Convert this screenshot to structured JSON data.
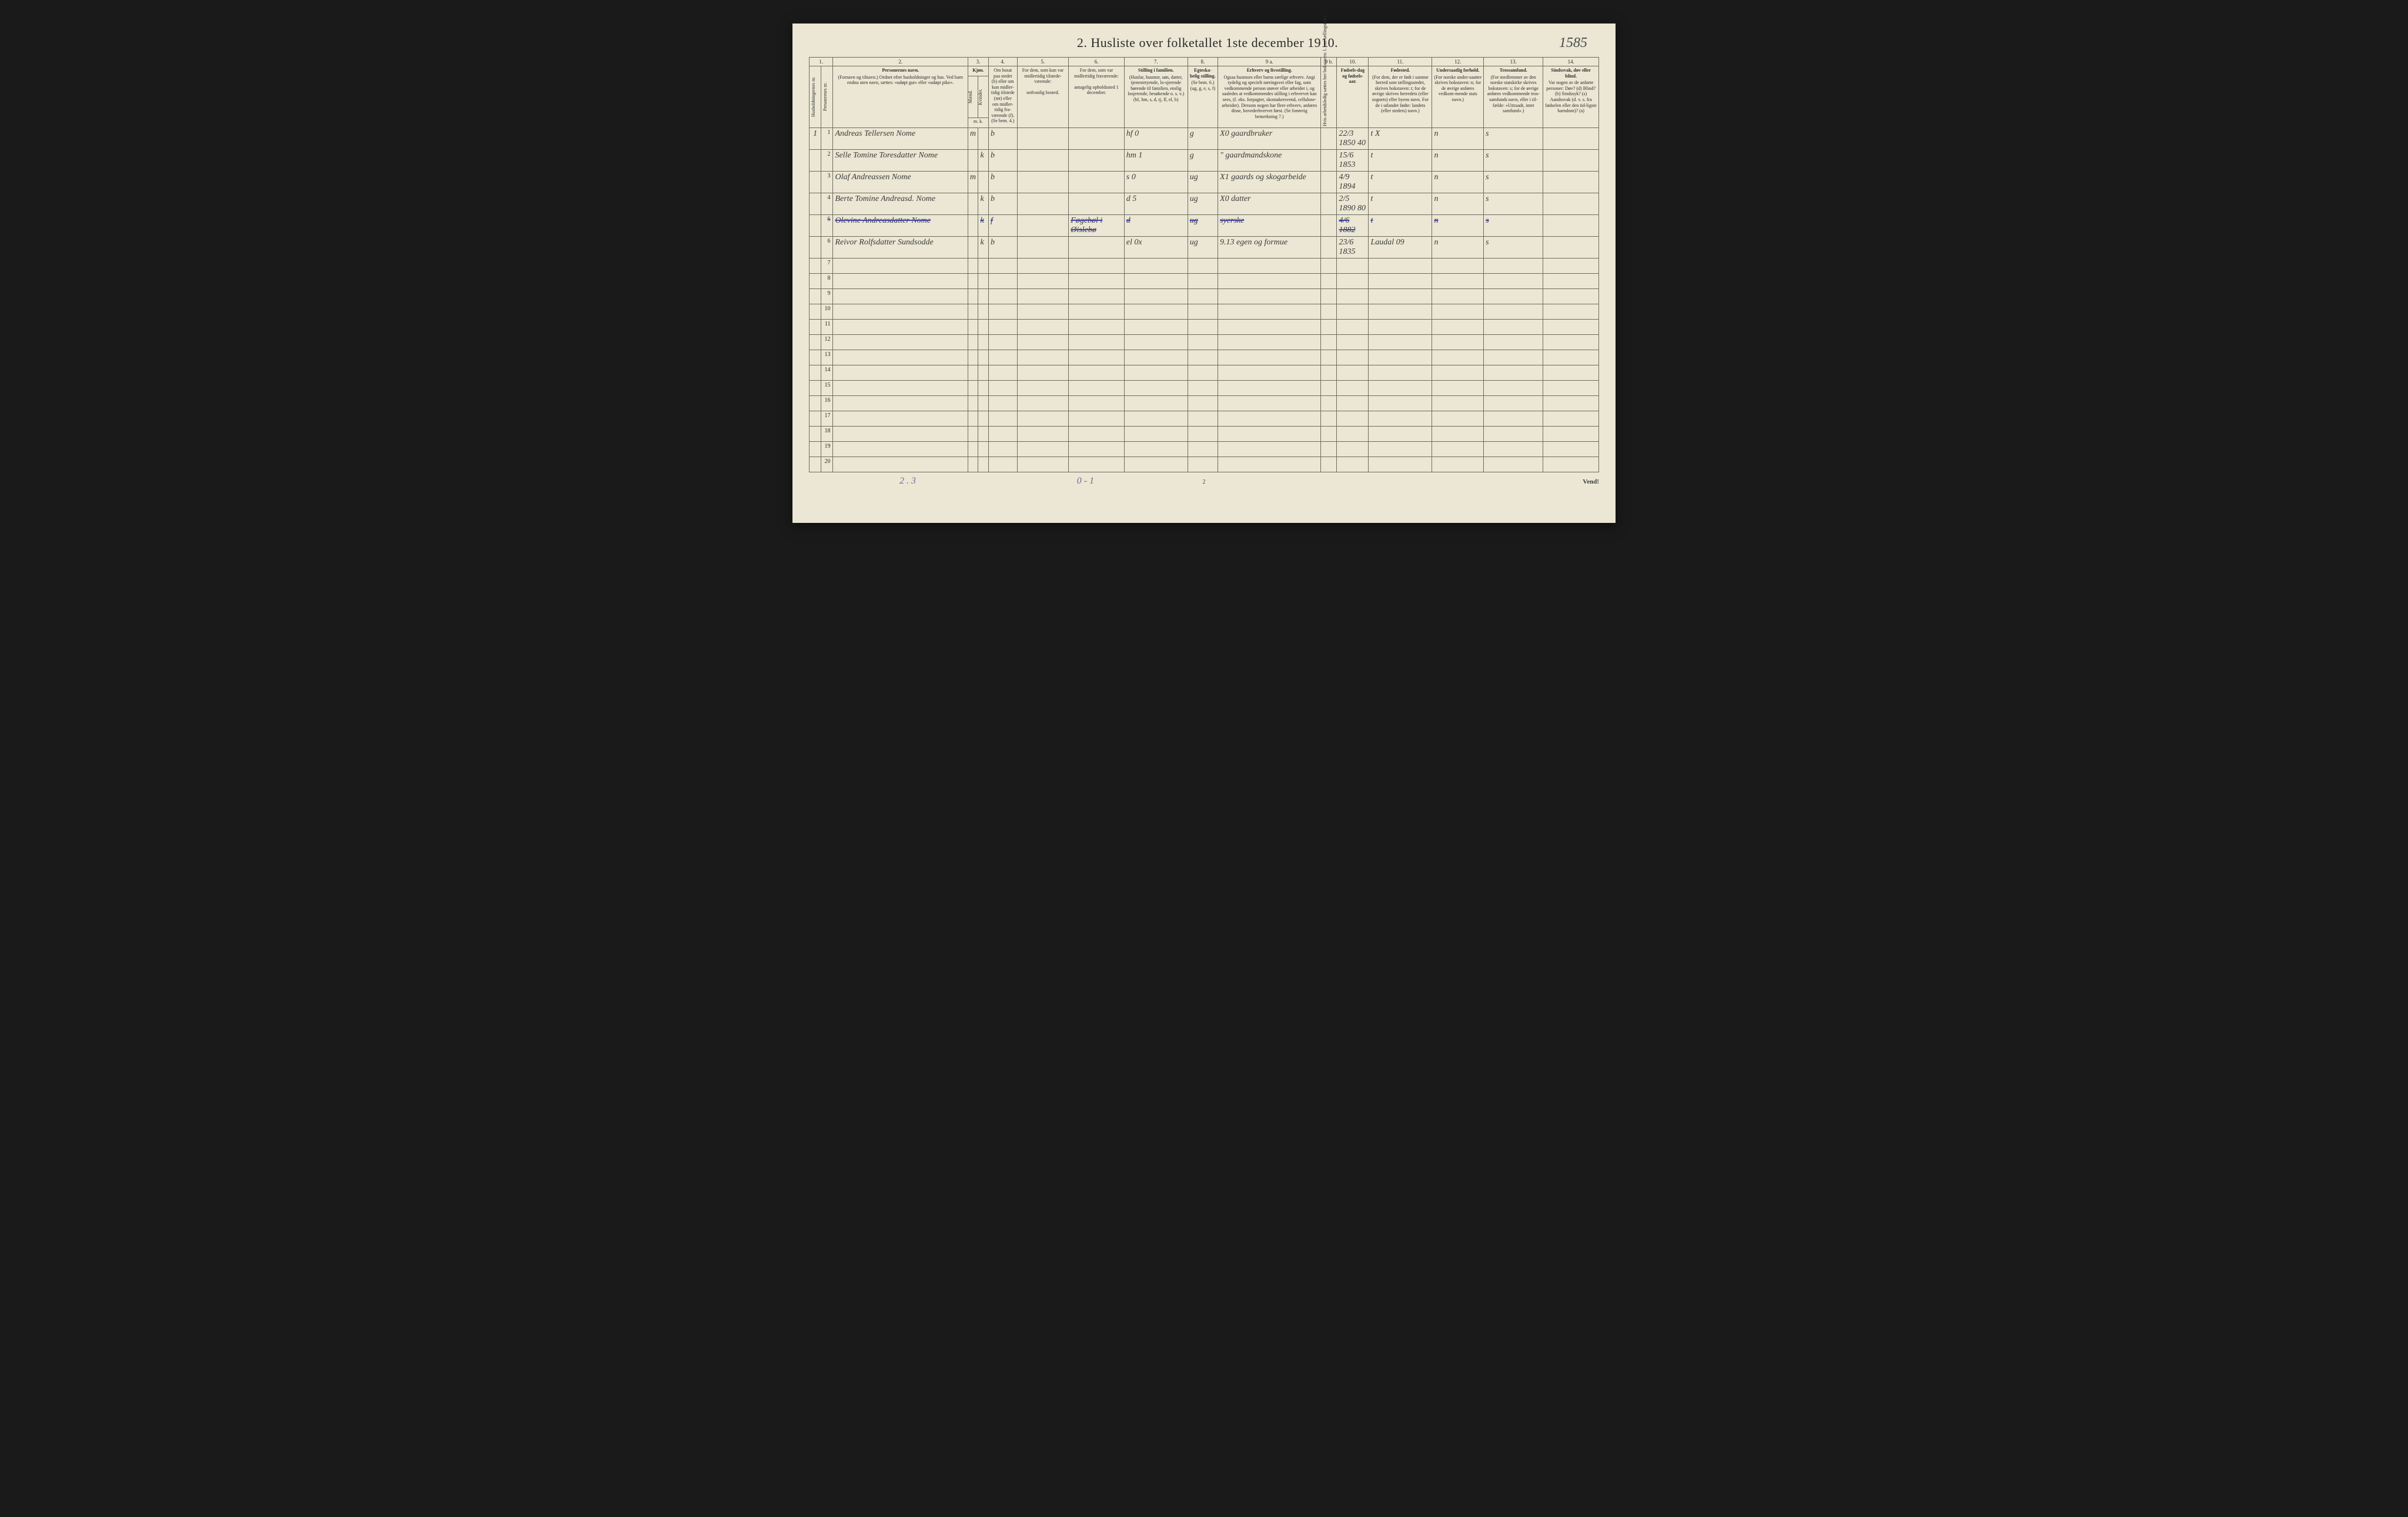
{
  "title": "2.  Husliste over folketallet 1ste december 1910.",
  "topright_handwritten": "1585",
  "col_numbers": [
    "1.",
    "2.",
    "3.",
    "4.",
    "5.",
    "6.",
    "7.",
    "8.",
    "9 a.",
    "9 b.",
    "10.",
    "11.",
    "12.",
    "13.",
    "14."
  ],
  "headers": {
    "c1a": "Husholdningernes nr.",
    "c1b": "Personernes nr.",
    "c2_main": "Personernes navn.",
    "c2_sub": "(Fornavn og tilnavn.)\nOrdnet efter husholdninger og hus.\nVed barn endnu uten navn, sættes: «udøpt gut» eller «udøpt pike».",
    "c3_main": "Kjøn.",
    "c3m": "Mænd.",
    "c3k": "Kvinder.",
    "c3_foot": "m. k.",
    "c4_main": "Om bosat paa stedet (b) eller om kun midler-tidig tilstede (mt) eller om midler-tidig fra-værende (f).",
    "c4_sub": "(Se bem. 4.)",
    "c5_main": "For dem, som kun var midlertidig tilstede-værende:",
    "c5_sub": "sedvanlig bosted.",
    "c6_main": "For dem, som var midlertidig fraværende:",
    "c6_sub": "antagelig opholdssted 1 december.",
    "c7_main": "Stilling i familien.",
    "c7_sub": "(Husfar, husmor, søn, datter, tjenestetyende, lo-sjerende hørende til familien, enslig losjerende, besøkende o. s. v.)\n(hf, hm, s, d, tj, fl, el, b)",
    "c8_main": "Egteska-belig stilling.",
    "c8_sub": "(Se bem. 6.)\n(ug, g, e, s, f)",
    "c9a_main": "Erhverv og livsstilling.",
    "c9a_sub": "Ogsaa husmors eller barns særlige erhverv.\nAngi tydelig og specielt næringsvei eller fag, som vedkommende person utøver eller arbeider i, og saaledes at vedkommendes stilling i erhvervet kan sees, (f. eks. forpagter, skomakersvend, cellulose-arbeider). Dersom nogen har flere erhverv, anføres disse, hovederhvervet først.\n(Se forøvrig bemerkning 7.)",
    "c9b": "Hvis arbeidsledig sættes her bokstaven: l. paa tællingstiden",
    "c10_main": "Fødsels-dag og fødsels-aar.",
    "c11_main": "Fødested.",
    "c11_sub": "(For dem, der er født i samme herred som tællingsstedet, skrives bokstaven: t; for de øvrige skrives herredets (eller sognets) eller byens navn.\nFor de i utlandet fødte: landets (eller stedets) navn.)",
    "c12_main": "Undersaatlig forhold.",
    "c12_sub": "(For norske under-saatter skrives bokstaven: n; for de øvrige anføres vedkom-mende stats navn.)",
    "c13_main": "Trossamfund.",
    "c13_sub": "(For medlemmer av den norske statskirke skrives bokstaven: s; for de øvrige anføres vedkommende tros-samfunds navn, eller i til-fælde: «Uttraadt, intet samfund».)",
    "c14_main": "Sindssvak, døv eller blind.",
    "c14_sub": "Var nogen av de anførte personer:\nDøv? (d)\nBlind? (b)\nSindssyk? (s)\nAandssvak (d. v. s. fra fødselen eller den tid-ligste barndom)? (a)"
  },
  "rows": [
    {
      "house": "1",
      "num": "1",
      "name": "Andreas Tellersen Nome",
      "m": "m",
      "k": "",
      "bosat": "b",
      "midl": "",
      "frav": "",
      "stilling": "hf",
      "stilling2": "0",
      "egt": "g",
      "erhverv": "X0  gaardbruker",
      "l": "",
      "fdato": "22/3 1850 40",
      "fsted": "t  X",
      "unders": "n",
      "tros": "s",
      "sinds": ""
    },
    {
      "house": "",
      "num": "2",
      "name": "Selle Tomine Toresdatter Nome",
      "m": "",
      "k": "k",
      "bosat": "b",
      "midl": "",
      "frav": "",
      "stilling": "hm",
      "stilling2": "1",
      "egt": "g",
      "erhverv": "\"  gaardmandskone",
      "l": "",
      "fdato": "15/6 1853",
      "fsted": "t",
      "unders": "n",
      "tros": "s",
      "sinds": ""
    },
    {
      "house": "",
      "num": "3",
      "name": "Olaf Andreassen Nome",
      "m": "m",
      "k": "",
      "bosat": "b",
      "midl": "",
      "frav": "",
      "stilling": "s",
      "stilling2": "0",
      "egt": "ug",
      "erhverv": "X1  gaards og skogarbeide",
      "l": "",
      "fdato": "4/9 1894",
      "fsted": "t",
      "unders": "n",
      "tros": "s",
      "sinds": ""
    },
    {
      "house": "",
      "num": "4",
      "name": "Berte Tomine Andreasd. Nome",
      "m": "",
      "k": "k",
      "bosat": "b",
      "midl": "",
      "frav": "",
      "stilling": "d",
      "stilling2": "5",
      "egt": "ug",
      "erhverv": "X0   datter",
      "l": "",
      "fdato": "2/5 1890 80",
      "fsted": "t",
      "unders": "n",
      "tros": "s",
      "sinds": ""
    },
    {
      "house": "",
      "num": "5",
      "name": "Olevine Andreasdatter Nome",
      "m": "",
      "k": "k",
      "bosat": "f",
      "midl": "",
      "frav": "Føgebøl i Øislebø",
      "stilling": "d",
      "stilling2": "",
      "egt": "ug",
      "erhverv": "syerske",
      "l": "",
      "fdato": "4/6 1882",
      "fsted": "t",
      "unders": "n",
      "tros": "s",
      "sinds": "",
      "strike": true
    },
    {
      "house": "",
      "num": "6",
      "name": "Reivor Rolfsdatter Sundsodde",
      "m": "",
      "k": "k",
      "bosat": "b",
      "midl": "",
      "frav": "",
      "stilling": "el",
      "stilling2": "0x",
      "egt": "ug",
      "erhverv": "9.13 egen og formue",
      "l": "",
      "fdato": "23/6 1835",
      "fsted": "Laudal 09",
      "unders": "n",
      "tros": "s",
      "sinds": ""
    }
  ],
  "empty_row_count": 14,
  "empty_row_start": 7,
  "footer_left": "2 . 3",
  "footer_mid": "0 - 1",
  "footer_center": "2",
  "footer_right": "Vend!"
}
